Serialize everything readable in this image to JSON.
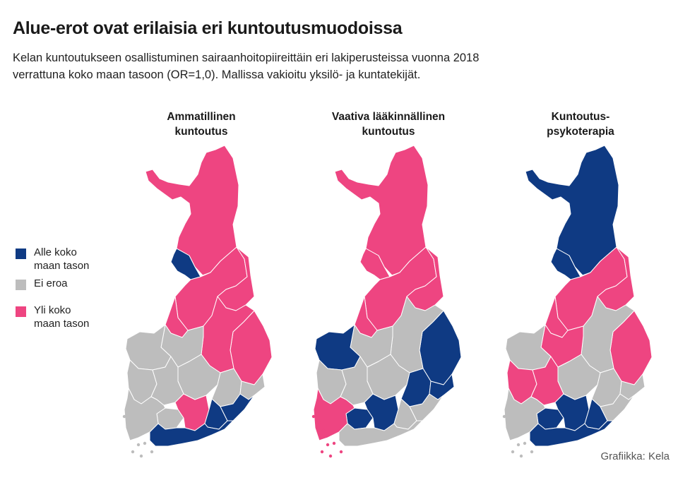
{
  "title": "Alue-erot ovat erilaisia eri kuntoutusmuodoissa",
  "subtitle_line1": "Kelan kuntoutukseen osallistuminen sairaanhoitopiireittäin eri lakiperusteissa vuonna 2018",
  "subtitle_line2": "verrattuna koko maan tasoon (OR=1,0). Mallissa vakioitu yksilö- ja kuntatekijät.",
  "colors": {
    "below": "#0f3a83",
    "equal": "#bdbdbd",
    "above": "#ee4581",
    "border": "#ffffff"
  },
  "legend": [
    {
      "key": "below",
      "line1": "Alle koko",
      "line2": "maan tason"
    },
    {
      "key": "equal",
      "line1": "Ei eroa",
      "line2": ""
    },
    {
      "key": "above",
      "line1": "Yli koko",
      "line2": "maan tason"
    }
  ],
  "maps": [
    {
      "title_line1": "Ammatillinen",
      "title_line2": "kuntoutus",
      "regions": {
        "lappi": "above",
        "lansi-pohja": "below",
        "pohjois-pohjanmaa": "above",
        "kainuu": "above",
        "keski-pohjanmaa": "above",
        "pohjois-karjala": "above",
        "pohjois-savo": "above",
        "etela-pohjanmaa": "equal",
        "vaasa": "equal",
        "keski-suomi": "equal",
        "etela-savo": "equal",
        "ita-savo": "equal",
        "satakunta": "equal",
        "pirkanmaa": "equal",
        "kanta-hame": "equal",
        "paijat-hame": "above",
        "kymenlaakso": "below",
        "etela-karjala": "below",
        "varsinais-suomi": "equal",
        "hus": "below"
      }
    },
    {
      "title_line1": "Vaativa lääkinnällinen",
      "title_line2": "kuntoutus",
      "regions": {
        "lappi": "above",
        "lansi-pohja": "above",
        "pohjois-pohjanmaa": "above",
        "kainuu": "above",
        "keski-pohjanmaa": "above",
        "pohjois-karjala": "below",
        "pohjois-savo": "equal",
        "etela-pohjanmaa": "equal",
        "vaasa": "below",
        "keski-suomi": "equal",
        "etela-savo": "below",
        "ita-savo": "below",
        "satakunta": "equal",
        "pirkanmaa": "equal",
        "kanta-hame": "below",
        "paijat-hame": "below",
        "kymenlaakso": "equal",
        "etela-karjala": "equal",
        "varsinais-suomi": "above",
        "hus": "equal"
      }
    },
    {
      "title_line1": "Kuntoutus-",
      "title_line2": "psykoterapia",
      "regions": {
        "lappi": "below",
        "lansi-pohja": "below",
        "pohjois-pohjanmaa": "above",
        "kainuu": "above",
        "keski-pohjanmaa": "above",
        "pohjois-karjala": "above",
        "pohjois-savo": "equal",
        "etela-pohjanmaa": "above",
        "vaasa": "equal",
        "keski-suomi": "equal",
        "etela-savo": "equal",
        "ita-savo": "equal",
        "satakunta": "above",
        "pirkanmaa": "above",
        "kanta-hame": "below",
        "paijat-hame": "below",
        "kymenlaakso": "below",
        "etela-karjala": "equal",
        "varsinais-suomi": "equal",
        "hus": "below"
      }
    }
  ],
  "credit": "Grafiikka: Kela"
}
